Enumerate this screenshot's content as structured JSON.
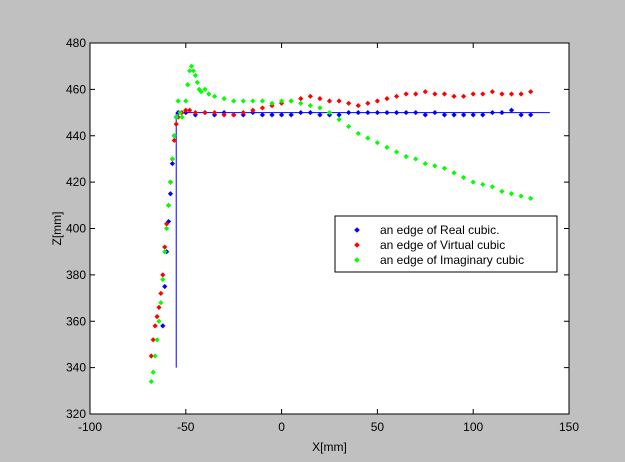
{
  "chart_data": {
    "type": "scatter",
    "title": "",
    "xlabel": "X[mm]",
    "ylabel": "Z[mm]",
    "xlim": [
      -100,
      150
    ],
    "ylim": [
      320,
      480
    ],
    "xticks": [
      -100,
      -50,
      0,
      50,
      100,
      150
    ],
    "yticks": [
      320,
      340,
      360,
      380,
      400,
      420,
      440,
      460,
      480
    ],
    "grid": false,
    "legend_position": "center-right",
    "background_color": "#ffffff",
    "figure_color": "#c0c0c0",
    "reference_lines": [
      {
        "x": [
          -55,
          -55
        ],
        "y": [
          340,
          450
        ],
        "color": "#0000ff"
      },
      {
        "x": [
          -55,
          140
        ],
        "y": [
          450,
          450
        ],
        "color": "#0000ff"
      }
    ],
    "series": [
      {
        "name": "an edge of Real cubic.",
        "color": "#0000ff",
        "x": [
          -62,
          -61,
          -60,
          -59,
          -58,
          -57,
          -56,
          -55,
          -54,
          -50,
          -45,
          -40,
          -35,
          -30,
          -25,
          -20,
          -15,
          -10,
          -5,
          0,
          5,
          10,
          15,
          20,
          25,
          30,
          35,
          40,
          45,
          50,
          55,
          60,
          65,
          70,
          75,
          80,
          85,
          90,
          95,
          100,
          105,
          110,
          115,
          120,
          125,
          130
        ],
        "y": [
          358,
          375,
          390,
          403,
          415,
          428,
          440,
          448,
          450,
          450,
          449,
          450,
          449,
          450,
          449,
          449,
          450,
          449,
          449,
          449,
          449,
          450,
          450,
          449,
          449,
          449,
          450,
          450,
          450,
          450,
          450,
          450,
          450,
          450,
          449,
          450,
          449,
          449,
          449,
          449,
          449,
          450,
          450,
          451,
          449,
          449
        ]
      },
      {
        "name": "an edge of Virtual cubic",
        "color": "#ff0000",
        "x": [
          -68,
          -67,
          -66,
          -65,
          -64,
          -63,
          -62,
          -61,
          -60,
          -59,
          -58,
          -57,
          -56,
          -55,
          -54,
          -52,
          -50,
          -48,
          -45,
          -40,
          -35,
          -30,
          -25,
          -20,
          -15,
          -10,
          -5,
          0,
          5,
          10,
          15,
          20,
          25,
          30,
          35,
          40,
          45,
          50,
          55,
          60,
          65,
          70,
          75,
          80,
          85,
          90,
          95,
          100,
          105,
          110,
          115,
          120,
          125,
          130
        ],
        "y": [
          345,
          352,
          358,
          362,
          366,
          372,
          380,
          392,
          402,
          410,
          420,
          430,
          438,
          445,
          448,
          450,
          451,
          451,
          450,
          450,
          450,
          449,
          449,
          450,
          451,
          452,
          453,
          454,
          455,
          456,
          457,
          456,
          455,
          455,
          454,
          453,
          454,
          455,
          456,
          457,
          458,
          458,
          459,
          458,
          458,
          457,
          457,
          458,
          458,
          459,
          458,
          458,
          458,
          459
        ]
      },
      {
        "name": "an edge of Imaginary cubic",
        "color": "#00ff00",
        "x": [
          -68,
          -67,
          -66,
          -65,
          -64,
          -63,
          -62,
          -61,
          -60,
          -59,
          -58,
          -57,
          -56,
          -55,
          -54,
          -53,
          -52,
          -50,
          -49,
          -48,
          -47,
          -46,
          -45,
          -44,
          -43,
          -42,
          -40,
          -38,
          -35,
          -30,
          -25,
          -20,
          -15,
          -10,
          -5,
          0,
          5,
          10,
          15,
          20,
          25,
          30,
          35,
          40,
          45,
          50,
          55,
          60,
          65,
          70,
          75,
          80,
          85,
          90,
          95,
          100,
          105,
          110,
          115,
          120,
          125,
          130
        ],
        "y": [
          334,
          338,
          345,
          352,
          360,
          368,
          378,
          390,
          400,
          410,
          420,
          430,
          440,
          448,
          455,
          450,
          448,
          455,
          462,
          468,
          470,
          468,
          466,
          463,
          460,
          459,
          460,
          458,
          457,
          456,
          455,
          455,
          455,
          455,
          454,
          455,
          455,
          454,
          453,
          452,
          450,
          447,
          444,
          441,
          439,
          437,
          435,
          433,
          431,
          430,
          428,
          427,
          426,
          424,
          422,
          420,
          419,
          418,
          416,
          415,
          414,
          413
        ]
      }
    ]
  }
}
